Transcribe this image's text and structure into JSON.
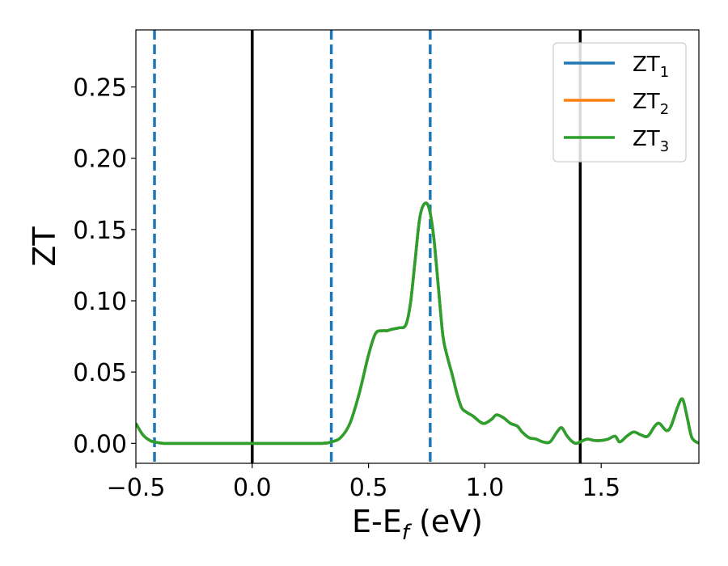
{
  "chart_data": {
    "type": "line",
    "title": "",
    "xlabel_main": "E-E",
    "xlabel_sub": "f",
    "xlabel_unit": " (eV)",
    "ylabel": "ZT",
    "xlim": [
      -0.5,
      1.92
    ],
    "ylim": [
      -0.014,
      0.29
    ],
    "xticks": [
      -0.5,
      0.0,
      0.5,
      1.0,
      1.5
    ],
    "xtick_labels": [
      "−0.5",
      "0.0",
      "0.5",
      "1.0",
      "1.5"
    ],
    "yticks": [
      0.0,
      0.05,
      0.1,
      0.15,
      0.2,
      0.25
    ],
    "ytick_labels": [
      "0.00",
      "0.05",
      "0.10",
      "0.15",
      "0.20",
      "0.25"
    ],
    "grid": false,
    "legend_position": "top-right",
    "vlines_solid": [
      0.0,
      1.41
    ],
    "vlines_dashed": [
      -0.42,
      0.34,
      0.765
    ],
    "series": [
      {
        "name": "ZT",
        "subscript": "1",
        "color": "#1f77b4"
      },
      {
        "name": "ZT",
        "subscript": "2",
        "color": "#ff7f0e"
      },
      {
        "name": "ZT",
        "subscript": "3",
        "color": "#2ca02c"
      }
    ],
    "x": [
      -0.5,
      -0.47,
      -0.44,
      -0.42,
      -0.38,
      -0.3,
      -0.2,
      0.0,
      0.2,
      0.3,
      0.34,
      0.38,
      0.42,
      0.46,
      0.5,
      0.53,
      0.56,
      0.58,
      0.6,
      0.63,
      0.66,
      0.68,
      0.7,
      0.72,
      0.74,
      0.76,
      0.78,
      0.8,
      0.82,
      0.84,
      0.86,
      0.88,
      0.9,
      0.92,
      0.95,
      0.98,
      1.0,
      1.03,
      1.05,
      1.08,
      1.11,
      1.14,
      1.16,
      1.19,
      1.22,
      1.25,
      1.28,
      1.31,
      1.33,
      1.35,
      1.37,
      1.39,
      1.41,
      1.44,
      1.47,
      1.5,
      1.53,
      1.56,
      1.58,
      1.61,
      1.64,
      1.67,
      1.7,
      1.73,
      1.75,
      1.78,
      1.8,
      1.83,
      1.85,
      1.87,
      1.89,
      1.92
    ],
    "y": [
      0.014,
      0.006,
      0.002,
      0.001,
      0.0,
      0.0,
      0.0,
      0.0,
      0.0,
      0.0,
      0.001,
      0.004,
      0.014,
      0.035,
      0.062,
      0.077,
      0.079,
      0.079,
      0.08,
      0.081,
      0.083,
      0.098,
      0.128,
      0.158,
      0.168,
      0.165,
      0.145,
      0.11,
      0.075,
      0.06,
      0.048,
      0.035,
      0.025,
      0.022,
      0.019,
      0.015,
      0.014,
      0.017,
      0.02,
      0.018,
      0.014,
      0.012,
      0.008,
      0.004,
      0.003,
      0.001,
      0.001,
      0.008,
      0.011,
      0.006,
      0.002,
      0.0,
      0.001,
      0.003,
      0.002,
      0.002,
      0.003,
      0.005,
      0.001,
      0.005,
      0.008,
      0.006,
      0.005,
      0.012,
      0.014,
      0.009,
      0.012,
      0.026,
      0.031,
      0.018,
      0.004,
      0.0
    ]
  }
}
